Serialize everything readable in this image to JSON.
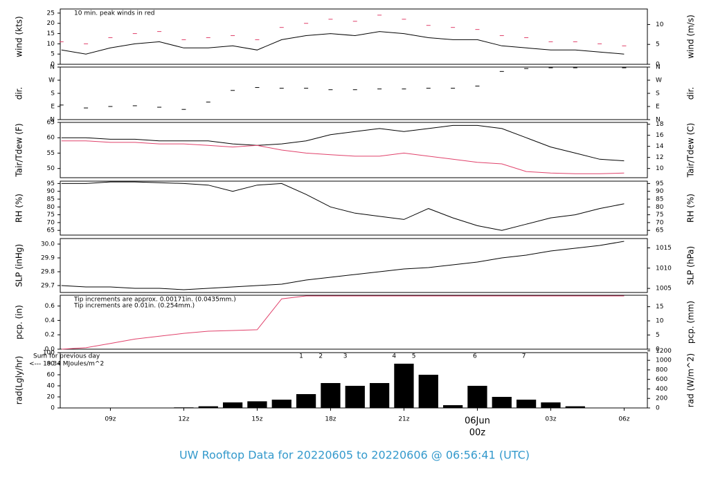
{
  "chart_data": {
    "type": "multi-panel",
    "title": "UW Rooftop Data for 20220605  to  20220606 @ 06:56:41  (UTC)",
    "x": [
      7,
      8,
      9,
      10,
      11,
      12,
      13,
      14,
      15,
      16,
      17,
      18,
      19,
      20,
      21,
      22,
      23,
      24,
      25,
      26,
      27,
      28,
      29,
      30
    ],
    "xlim": [
      6.95,
      30.95
    ],
    "xticks": [
      {
        "value": 9,
        "label": "09z"
      },
      {
        "value": 12,
        "label": "12z"
      },
      {
        "value": 15,
        "label": "15z"
      },
      {
        "value": 18,
        "label": "18z"
      },
      {
        "value": 21,
        "label": "21z"
      },
      {
        "value": 24,
        "label": "00z"
      },
      {
        "value": 27,
        "label": "03z"
      },
      {
        "value": 30,
        "label": "06z"
      }
    ],
    "xdate": {
      "value": 24,
      "label": "06Jun"
    },
    "panels": [
      {
        "type": "line",
        "ylabel": "wind (kts)",
        "y2label": "wind (m/s)",
        "ylim": [
          0,
          27
        ],
        "yticks": [
          0,
          5,
          10,
          15,
          20,
          25
        ],
        "y2lim": [
          0,
          13.9
        ],
        "y2ticks": [
          0,
          5,
          10
        ],
        "annotations": [
          {
            "text": "10 min. peak winds in red",
            "color": "#e0406a"
          }
        ],
        "series": [
          {
            "style": "line",
            "color": "#000000",
            "values": [
              7,
              5,
              8,
              10,
              11,
              8,
              8,
              9,
              7,
              12,
              14,
              15,
              14,
              16,
              15,
              13,
              12,
              12,
              9,
              8,
              7,
              7,
              6,
              5
            ]
          },
          {
            "style": "points",
            "color": "#e0406a",
            "values": [
              11,
              10,
              13,
              15,
              16,
              12,
              13,
              14,
              12,
              18,
              20,
              22,
              21,
              24,
              22,
              19,
              18,
              17,
              14,
              13,
              11,
              11,
              10,
              9
            ]
          }
        ]
      },
      {
        "type": "points",
        "ylabel": "dir.",
        "y2label": "dir.",
        "ylim": [
          0,
          360
        ],
        "yticks": [
          {
            "value": 0,
            "label": "N"
          },
          {
            "value": 90,
            "label": "E"
          },
          {
            "value": 180,
            "label": "S"
          },
          {
            "value": 270,
            "label": "W"
          },
          {
            "value": 360,
            "label": "N"
          }
        ],
        "y2lim": [
          0,
          360
        ],
        "y2ticks": [
          {
            "value": 0,
            "label": "N"
          },
          {
            "value": 90,
            "label": "E"
          },
          {
            "value": 180,
            "label": "S"
          },
          {
            "value": 270,
            "label": "W"
          },
          {
            "value": 360,
            "label": "N"
          }
        ],
        "series": [
          {
            "style": "points",
            "color": "#000000",
            "values": [
              100,
              80,
              90,
              95,
              85,
              70,
              120,
              200,
              220,
              215,
              215,
              205,
              205,
              210,
              210,
              215,
              215,
              230,
              330,
              350,
              355,
              355,
              360,
              355
            ]
          }
        ]
      },
      {
        "type": "line",
        "ylabel": "Tair/Tdew (F)",
        "y2label": "Tair/Tdew (C)",
        "ylim": [
          47,
          65
        ],
        "yticks": [
          50,
          55,
          60,
          65
        ],
        "y2lim": [
          8.33,
          18.33
        ],
        "y2ticks": [
          10,
          12,
          14,
          16,
          18
        ],
        "series": [
          {
            "style": "line",
            "color": "#000000",
            "values": [
              60,
              60,
              59.5,
              59.5,
              59,
              59,
              59,
              58,
              57.5,
              58,
              59,
              61,
              62,
              63,
              62,
              63,
              64,
              64,
              63,
              60,
              57,
              55,
              53,
              52.5
            ]
          },
          {
            "style": "line",
            "color": "#e0406a",
            "values": [
              59,
              59,
              58.5,
              58.5,
              58,
              58,
              57.5,
              57,
              57.5,
              56,
              55,
              54.5,
              54,
              54,
              55,
              54,
              53,
              52,
              51.5,
              49,
              48.5,
              48.3,
              48.3,
              48.5
            ]
          }
        ]
      },
      {
        "type": "line",
        "ylabel": "RH (%)",
        "y2label": "RH (%)",
        "ylim": [
          62,
          96.5
        ],
        "yticks": [
          65,
          70,
          75,
          80,
          85,
          90,
          95
        ],
        "y2lim": [
          62,
          96.5
        ],
        "y2ticks": [
          65,
          70,
          75,
          80,
          85,
          90,
          95
        ],
        "series": [
          {
            "style": "line",
            "color": "#000000",
            "values": [
              95,
              95,
              96,
              96,
              95.5,
              95,
              94,
              90,
              94,
              95,
              88,
              80,
              76,
              74,
              72,
              79,
              73,
              68,
              65,
              69,
              73,
              75,
              79,
              82
            ]
          }
        ]
      },
      {
        "type": "line",
        "ylabel": "SLP (inHg)",
        "y2label": "SLP (hPa)",
        "ylim": [
          29.65,
          30.04
        ],
        "yticks": [
          29.7,
          29.8,
          29.9,
          {
            "value": 30,
            "label": "30.0"
          }
        ],
        "y2lim": [
          1004.0,
          1017.3
        ],
        "y2ticks": [
          1005,
          1010,
          1015
        ],
        "series": [
          {
            "style": "line",
            "color": "#000000",
            "values": [
              29.7,
              29.69,
              29.69,
              29.68,
              29.68,
              29.67,
              29.68,
              29.69,
              29.7,
              29.71,
              29.74,
              29.76,
              29.78,
              29.8,
              29.82,
              29.83,
              29.85,
              29.87,
              29.9,
              29.92,
              29.95,
              29.97,
              29.99,
              30.02
            ]
          }
        ]
      },
      {
        "type": "line",
        "ylabel": "pcp. (in)",
        "y2label": "pcp. (mm)",
        "ylim": [
          0,
          0.75
        ],
        "yticks": [
          {
            "value": 0,
            "label": "0.0"
          },
          0.2,
          0.4,
          0.6
        ],
        "y2lim": [
          0,
          19.05
        ],
        "y2ticks": [
          0,
          5,
          10,
          15
        ],
        "annotations": [
          {
            "text": "Tip increments are approx. 0.00171in. (0.0435mm.)",
            "color": "#e0406a"
          },
          {
            "text": "Tip increments are 0.01in. (0.254mm.)",
            "color": "#3399cc"
          }
        ],
        "series": [
          {
            "style": "line",
            "color": "#e0406a",
            "values": [
              0,
              0.02,
              0.08,
              0.14,
              0.18,
              0.22,
              0.25,
              0.26,
              0.27,
              0.7,
              0.74,
              0.74,
              0.74,
              0.74,
              0.74,
              0.74,
              0.74,
              0.74,
              0.74,
              0.74,
              0.74,
              0.74,
              0.74,
              0.74
            ]
          }
        ]
      },
      {
        "type": "bar",
        "ylabel": "rad(Lgly/hr)",
        "y2label": "rad (W/m^2)",
        "ylim": [
          0,
          100
        ],
        "yticks": [
          0,
          20,
          40,
          60,
          80,
          100
        ],
        "y2lim": [
          0,
          1162
        ],
        "y2ticks": [
          0,
          200,
          400,
          600,
          800,
          1000,
          1200
        ],
        "annotations": [
          {
            "text": "Sum for previous day",
            "color": "#9933cc"
          },
          {
            "text": "<--- 19.34 MJoules/m^2",
            "color": "#9933cc"
          }
        ],
        "markers": {
          "x": [
            16.8,
            17.6,
            18.6,
            20.6,
            21.4,
            23.9,
            25.9
          ],
          "labels": [
            1,
            2,
            3,
            4,
            5,
            6,
            7
          ],
          "color": "#9933cc"
        },
        "series": [
          {
            "style": "bars",
            "color": "#000000",
            "values": [
              0,
              0,
              0,
              0,
              0,
              1,
              3,
              10,
              12,
              15,
              25,
              45,
              40,
              45,
              80,
              60,
              5,
              40,
              20,
              15,
              10,
              3,
              0,
              0
            ]
          }
        ]
      }
    ]
  }
}
